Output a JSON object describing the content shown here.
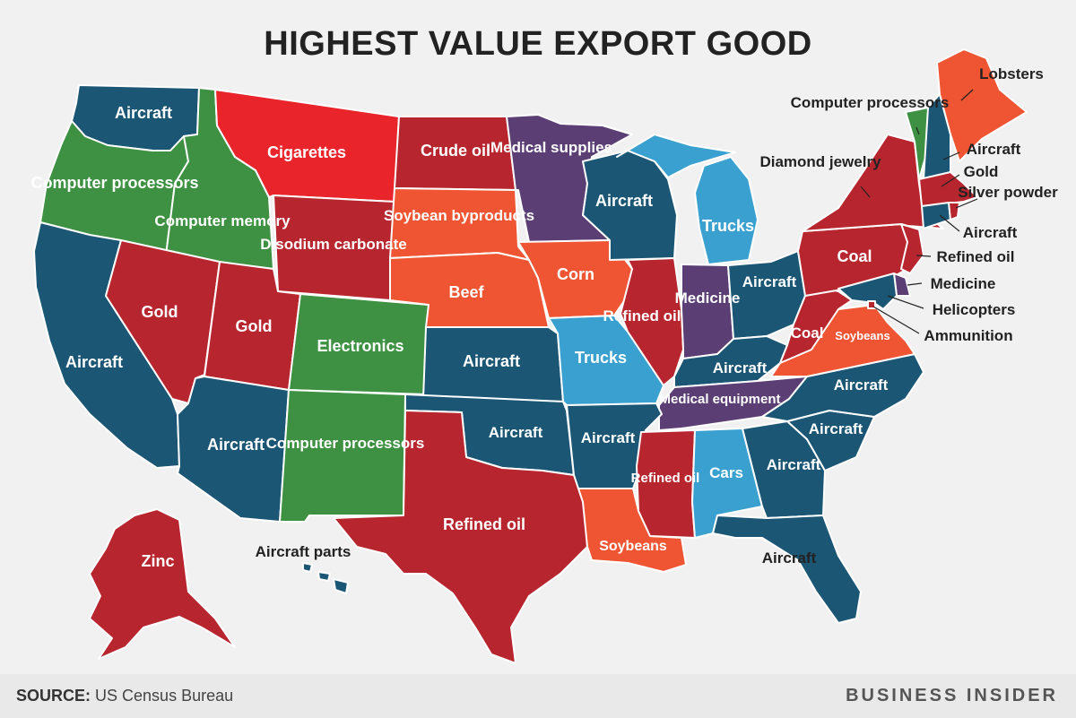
{
  "title": "HIGHEST VALUE EXPORT GOOD",
  "footer": {
    "source_label": "SOURCE:",
    "source_text": "US Census Bureau",
    "brand": "BUSINESS INSIDER"
  },
  "colors": {
    "dark_blue": "#1b5674",
    "light_blue": "#3aa0cf",
    "green": "#3e9142",
    "red": "#b7262e",
    "bright_red": "#e9242b",
    "orange": "#ef5533",
    "purple": "#5b3f74"
  },
  "labels": {
    "WA": "Aircraft",
    "OR": "Computer processors",
    "ID": "Computer memory",
    "MT": "Cigarettes",
    "WY": "Disodium carbonate",
    "ND": "Crude oil",
    "SD": "Soybean byproducts",
    "MN": "Medical supplies",
    "WI": "Aircraft",
    "MI": "Trucks",
    "IA": "Corn",
    "NE": "Beef",
    "CA": "Aircraft",
    "NV": "Gold",
    "UT": "Gold",
    "CO": "Electronics",
    "KS": "Aircraft",
    "MO": "Trucks",
    "IL": "Refined oil",
    "IN": "Medicine",
    "OH": "Aircraft",
    "KY": "Aircraft",
    "WV": "Coal",
    "VA": "Soybeans",
    "PA": "Coal",
    "NY": "Diamond jewelry",
    "ME": "Lobsters",
    "VT": "Computer processors",
    "NH": "Aircraft",
    "MA": "Gold",
    "RI": "Silver powder",
    "CT": "Aircraft",
    "NJ": "Refined oil",
    "DE": "Medicine",
    "MD": "Helicopters",
    "DC": "Ammunition",
    "TN": "Medical equipment",
    "NC": "Aircraft",
    "SC": "Aircraft",
    "GA": "Aircraft",
    "AL": "Cars",
    "MS": "Refined oil",
    "LA": "Soybeans",
    "AR": "Aircraft",
    "OK": "Aircraft",
    "TX": "Refined oil",
    "NM": "Computer processors",
    "AZ": "Aircraft",
    "FL": "Aircraft",
    "AK": "Zinc",
    "HI": "Aircraft parts"
  }
}
